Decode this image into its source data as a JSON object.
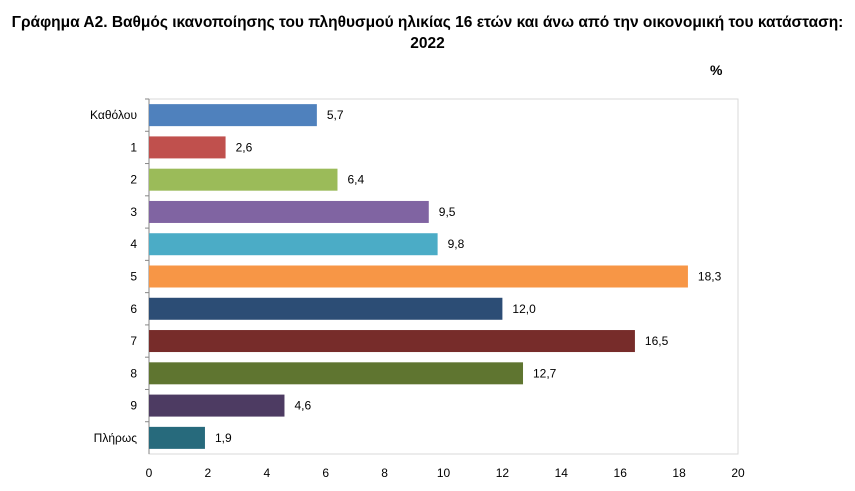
{
  "chart_data": {
    "type": "bar",
    "orientation": "horizontal",
    "title": "Γράφημα Α2. Βαθμός ικανοποίησης του πληθυσμού ηλικίας 16 ετών και άνω από την οικονομική του κατάσταση: 2022",
    "unit_label": "%",
    "categories": [
      "Καθόλου",
      "1",
      "2",
      "3",
      "4",
      "5",
      "6",
      "7",
      "8",
      "9",
      "Πλήρως"
    ],
    "values": [
      5.7,
      2.6,
      6.4,
      9.5,
      9.8,
      18.3,
      12.0,
      16.5,
      12.7,
      4.6,
      1.9
    ],
    "data_labels": [
      "5,7",
      "2,6",
      "6,4",
      "9,5",
      "9,8",
      "18,3",
      "12,0",
      "16,5",
      "12,7",
      "4,6",
      "1,9"
    ],
    "colors": [
      "#4F81BD",
      "#C0504D",
      "#9BBB59",
      "#8064A2",
      "#4BACC6",
      "#F79646",
      "#2C4D75",
      "#772C2A",
      "#5F7530",
      "#4D3B62",
      "#276A7C"
    ],
    "xlim": [
      0,
      20
    ],
    "x_ticks": [
      "0",
      "2",
      "4",
      "6",
      "8",
      "10",
      "12",
      "14",
      "16",
      "18",
      "20"
    ],
    "grid": false,
    "legend": "none"
  }
}
